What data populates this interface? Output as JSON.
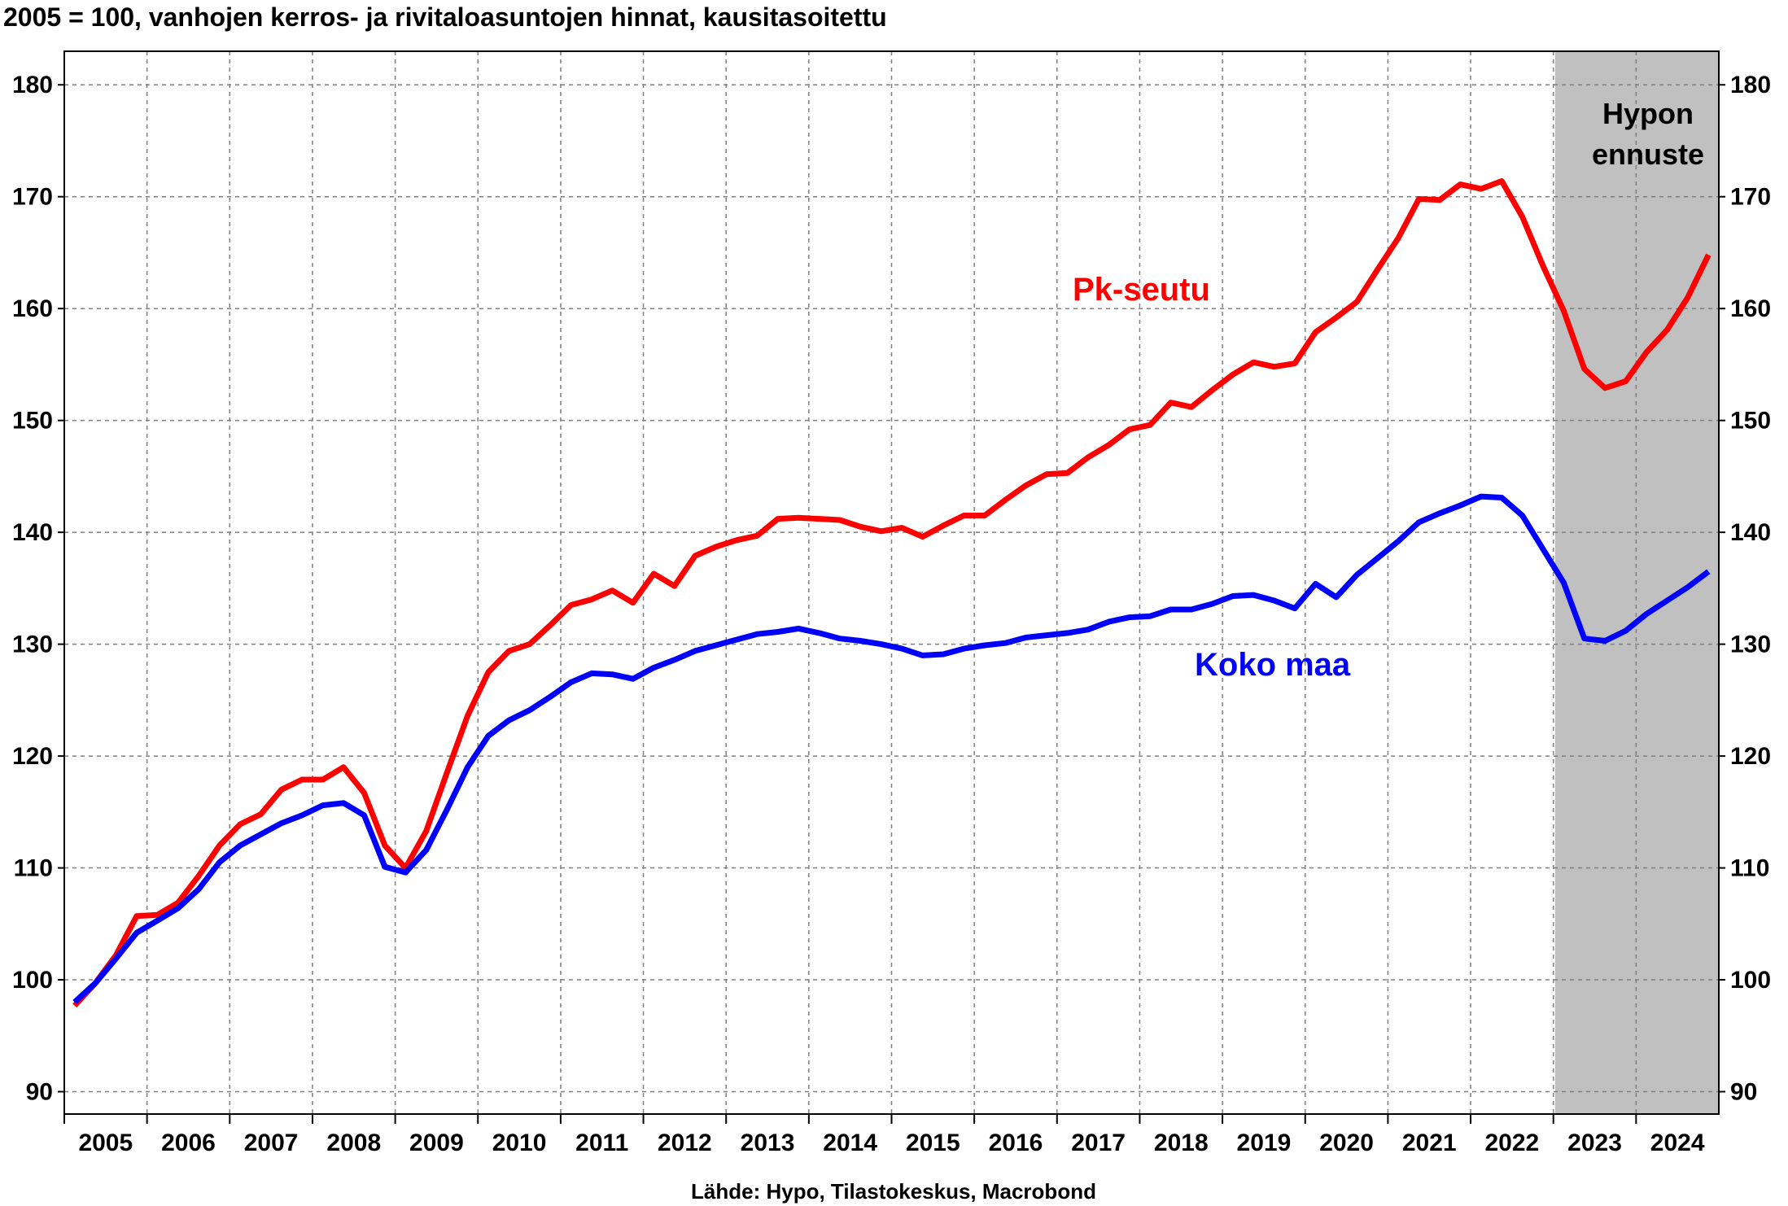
{
  "chart_data": {
    "type": "line",
    "title": "2005 = 100, vanhojen kerros- ja rivitaloasuntojen hinnat, kausitasoitettu",
    "source": "Lähde: Hypo, Tilastokeskus, Macrobond",
    "forecast_label": [
      "Hypon",
      "ennuste"
    ],
    "forecast_period": [
      "2023Q1",
      "2024Q4"
    ],
    "ylim": [
      88,
      183
    ],
    "y_ticks": [
      90,
      100,
      110,
      120,
      130,
      140,
      150,
      160,
      170,
      180
    ],
    "x_tick_labels": [
      "2005",
      "2006",
      "2007",
      "2008",
      "2009",
      "2010",
      "2011",
      "2012",
      "2013",
      "2014",
      "2015",
      "2016",
      "2017",
      "2018",
      "2019",
      "2020",
      "2021",
      "2022",
      "2023",
      "2024"
    ],
    "x": [
      "2005Q1",
      "2005Q2",
      "2005Q3",
      "2005Q4",
      "2006Q1",
      "2006Q2",
      "2006Q3",
      "2006Q4",
      "2007Q1",
      "2007Q2",
      "2007Q3",
      "2007Q4",
      "2008Q1",
      "2008Q2",
      "2008Q3",
      "2008Q4",
      "2009Q1",
      "2009Q2",
      "2009Q3",
      "2009Q4",
      "2010Q1",
      "2010Q2",
      "2010Q3",
      "2010Q4",
      "2011Q1",
      "2011Q2",
      "2011Q3",
      "2011Q4",
      "2012Q1",
      "2012Q2",
      "2012Q3",
      "2012Q4",
      "2013Q1",
      "2013Q2",
      "2013Q3",
      "2013Q4",
      "2014Q1",
      "2014Q2",
      "2014Q3",
      "2014Q4",
      "2015Q1",
      "2015Q2",
      "2015Q3",
      "2015Q4",
      "2016Q1",
      "2016Q2",
      "2016Q3",
      "2016Q4",
      "2017Q1",
      "2017Q2",
      "2017Q3",
      "2017Q4",
      "2018Q1",
      "2018Q2",
      "2018Q3",
      "2018Q4",
      "2019Q1",
      "2019Q2",
      "2019Q3",
      "2019Q4",
      "2020Q1",
      "2020Q2",
      "2020Q3",
      "2020Q4",
      "2021Q1",
      "2021Q2",
      "2021Q3",
      "2021Q4",
      "2022Q1",
      "2022Q2",
      "2022Q3",
      "2022Q4",
      "2023Q1",
      "2023Q2",
      "2023Q3",
      "2023Q4",
      "2024Q1",
      "2024Q2",
      "2024Q3",
      "2024Q4"
    ],
    "series": [
      {
        "name": "Pk-seutu",
        "color": "#ff0000",
        "values": [
          97.7,
          99.7,
          102.2,
          105.7,
          105.8,
          106.9,
          109.3,
          112.0,
          113.9,
          114.8,
          117.0,
          117.9,
          117.9,
          119.0,
          116.7,
          112.0,
          110.0,
          113.3,
          118.5,
          123.6,
          127.5,
          129.4,
          130.0,
          131.7,
          133.5,
          134.0,
          134.8,
          133.7,
          136.3,
          135.2,
          137.9,
          138.7,
          139.3,
          139.7,
          141.2,
          141.3,
          141.2,
          141.1,
          140.5,
          140.1,
          140.4,
          139.6,
          140.6,
          141.5,
          141.5,
          142.9,
          144.2,
          145.2,
          145.3,
          146.7,
          147.8,
          149.2,
          149.6,
          151.6,
          151.2,
          152.7,
          154.1,
          155.2,
          154.8,
          155.1,
          157.9,
          159.2,
          160.6,
          163.5,
          166.3,
          169.8,
          169.7,
          171.1,
          170.7,
          171.4,
          168.2,
          163.8,
          159.8,
          154.6,
          152.9,
          153.5,
          156.1,
          158.1,
          161.0,
          164.8
        ]
      },
      {
        "name": "Koko maa",
        "color": "#0000ff",
        "values": [
          98.0,
          99.7,
          101.9,
          104.2,
          105.3,
          106.4,
          108.1,
          110.5,
          112.0,
          113.0,
          114.0,
          114.7,
          115.6,
          115.8,
          114.7,
          110.1,
          109.6,
          111.6,
          115.2,
          119.0,
          121.8,
          123.2,
          124.1,
          125.3,
          126.6,
          127.4,
          127.3,
          126.9,
          127.9,
          128.6,
          129.4,
          129.9,
          130.4,
          130.9,
          131.1,
          131.4,
          131.0,
          130.5,
          130.3,
          130.0,
          129.6,
          129.0,
          129.1,
          129.6,
          129.9,
          130.1,
          130.6,
          130.8,
          131.0,
          131.3,
          132.0,
          132.4,
          132.5,
          133.1,
          133.1,
          133.6,
          134.3,
          134.4,
          133.9,
          133.2,
          135.4,
          134.2,
          136.2,
          137.7,
          139.2,
          140.9,
          141.7,
          142.4,
          143.2,
          143.1,
          141.5,
          138.5,
          135.5,
          130.5,
          130.3,
          131.2,
          132.7,
          133.9,
          135.1,
          136.5
        ]
      }
    ],
    "annotations": [
      {
        "text": "Pk-seutu",
        "color": "#ff0000"
      },
      {
        "text": "Koko maa",
        "color": "#0000ff"
      }
    ],
    "grid": true,
    "forecast_shade_color": "#c0c0c0"
  }
}
